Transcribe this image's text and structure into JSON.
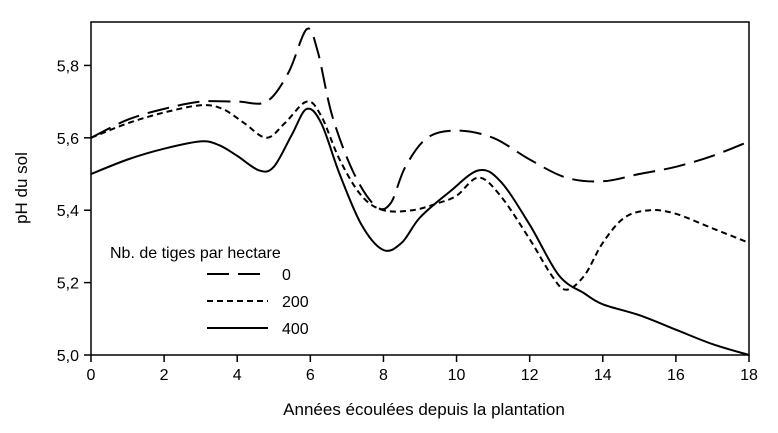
{
  "chart_data": {
    "type": "line",
    "title": "",
    "xlabel": "Années écoulées depuis la plantation",
    "ylabel": "pH du sol",
    "xlim": [
      0,
      18
    ],
    "ylim": [
      5.0,
      5.92
    ],
    "x_ticks": [
      0,
      2,
      4,
      6,
      8,
      10,
      12,
      14,
      16,
      18
    ],
    "x_tick_labels": [
      "0",
      "2",
      "4",
      "6",
      "8",
      "10",
      "12",
      "14",
      "16",
      "18"
    ],
    "y_ticks": [
      5.0,
      5.2,
      5.4,
      5.6,
      5.8
    ],
    "y_tick_labels": [
      "5,0",
      "5,2",
      "5,4",
      "5,6",
      "5,8"
    ],
    "grid": false,
    "legend": {
      "title": "Nb. de tiges par hectare",
      "placement": "bottom-left"
    },
    "series": [
      {
        "name": "0",
        "style": "long-dash",
        "points": [
          [
            0,
            5.6
          ],
          [
            1,
            5.65
          ],
          [
            2,
            5.68
          ],
          [
            3,
            5.7
          ],
          [
            4,
            5.7
          ],
          [
            4.8,
            5.7
          ],
          [
            5.4,
            5.78
          ],
          [
            5.9,
            5.9
          ],
          [
            6.2,
            5.84
          ],
          [
            6.6,
            5.66
          ],
          [
            7.2,
            5.5
          ],
          [
            7.8,
            5.41
          ],
          [
            8.2,
            5.42
          ],
          [
            8.6,
            5.52
          ],
          [
            9.2,
            5.6
          ],
          [
            10,
            5.62
          ],
          [
            11,
            5.6
          ],
          [
            12,
            5.54
          ],
          [
            13,
            5.49
          ],
          [
            14,
            5.48
          ],
          [
            15,
            5.5
          ],
          [
            16,
            5.52
          ],
          [
            17,
            5.55
          ],
          [
            18,
            5.59
          ]
        ]
      },
      {
        "name": "200",
        "style": "short-dash",
        "points": [
          [
            0,
            5.6
          ],
          [
            1,
            5.64
          ],
          [
            2,
            5.67
          ],
          [
            3,
            5.69
          ],
          [
            3.6,
            5.68
          ],
          [
            4.2,
            5.64
          ],
          [
            4.8,
            5.6
          ],
          [
            5.3,
            5.64
          ],
          [
            5.9,
            5.7
          ],
          [
            6.3,
            5.66
          ],
          [
            6.8,
            5.54
          ],
          [
            7.4,
            5.44
          ],
          [
            8,
            5.4
          ],
          [
            8.8,
            5.4
          ],
          [
            9.5,
            5.42
          ],
          [
            10,
            5.44
          ],
          [
            10.6,
            5.49
          ],
          [
            11.2,
            5.44
          ],
          [
            12,
            5.32
          ],
          [
            12.6,
            5.22
          ],
          [
            13,
            5.18
          ],
          [
            13.5,
            5.22
          ],
          [
            14,
            5.31
          ],
          [
            14.6,
            5.38
          ],
          [
            15.3,
            5.4
          ],
          [
            16,
            5.39
          ],
          [
            17,
            5.35
          ],
          [
            18,
            5.31
          ]
        ]
      },
      {
        "name": "400",
        "style": "solid",
        "points": [
          [
            0,
            5.5
          ],
          [
            1,
            5.54
          ],
          [
            2,
            5.57
          ],
          [
            3,
            5.59
          ],
          [
            3.5,
            5.58
          ],
          [
            4,
            5.55
          ],
          [
            4.6,
            5.51
          ],
          [
            5,
            5.52
          ],
          [
            5.5,
            5.61
          ],
          [
            5.9,
            5.68
          ],
          [
            6.3,
            5.64
          ],
          [
            6.8,
            5.5
          ],
          [
            7.4,
            5.36
          ],
          [
            8,
            5.29
          ],
          [
            8.5,
            5.31
          ],
          [
            9,
            5.38
          ],
          [
            9.8,
            5.45
          ],
          [
            10.6,
            5.51
          ],
          [
            11.2,
            5.48
          ],
          [
            12,
            5.36
          ],
          [
            12.8,
            5.22
          ],
          [
            13.5,
            5.17
          ],
          [
            14,
            5.14
          ],
          [
            15,
            5.11
          ],
          [
            16,
            5.07
          ],
          [
            17,
            5.03
          ],
          [
            18,
            5.0
          ]
        ]
      }
    ]
  }
}
